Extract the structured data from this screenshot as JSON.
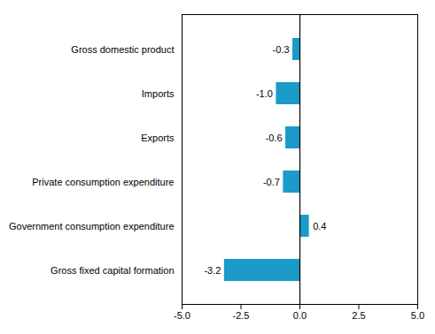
{
  "chart_data": {
    "type": "bar",
    "orientation": "horizontal",
    "categories": [
      "Gross fixed capital formation",
      "Government consumption expenditure",
      "Private consumption expenditure",
      "Exports",
      "Imports",
      "Gross domestic product"
    ],
    "values": [
      -3.2,
      0.4,
      -0.7,
      -0.6,
      -1.0,
      -0.3
    ],
    "value_labels": [
      "-3.2",
      "0.4",
      "-0.7",
      "-0.6",
      "-1.0",
      "-0.3"
    ],
    "data_labels": true,
    "color": "#1a9bca",
    "xlim": [
      -5.0,
      5.0
    ],
    "xticks": [
      {
        "value": -5.0,
        "label": "-5.0"
      },
      -2.5,
      {
        "value": 0.0,
        "label": "0.0"
      },
      2.5,
      {
        "value": 5.0,
        "label": "5.0"
      }
    ],
    "grid": false
  }
}
